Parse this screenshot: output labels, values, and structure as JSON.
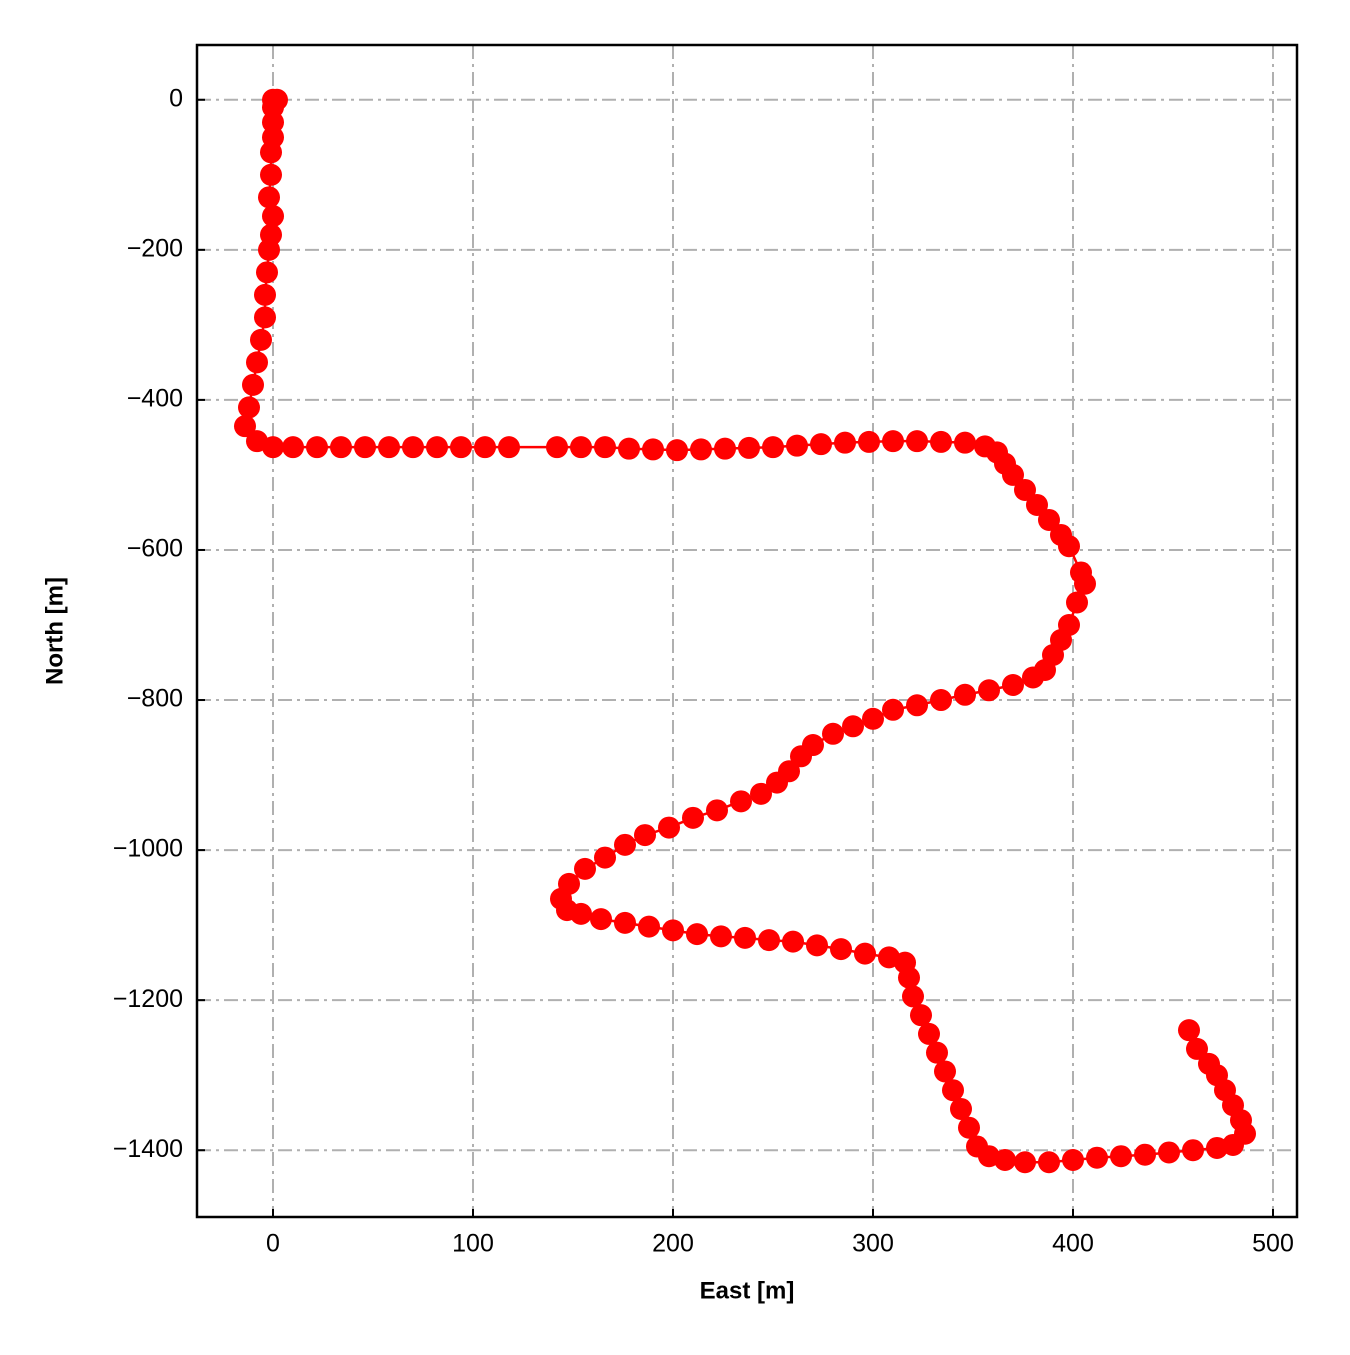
{
  "chart_data": {
    "type": "line",
    "xlabel": "East [m]",
    "ylabel": "North [m]",
    "color": "#ff0000",
    "marker": true,
    "grid": true,
    "x": [
      0,
      2,
      0,
      0,
      0,
      -1,
      -1,
      -2,
      0,
      -1,
      -2,
      -3,
      -4,
      -4,
      -6,
      -8,
      -10,
      -12,
      -14,
      -8,
      0,
      10,
      22,
      34,
      46,
      58,
      70,
      82,
      94,
      106,
      118,
      142,
      154,
      166,
      178,
      190,
      202,
      214,
      226,
      238,
      250,
      262,
      274,
      286,
      298,
      310,
      322,
      334,
      346,
      356,
      362,
      366,
      370,
      376,
      382,
      388,
      394,
      398,
      404,
      406,
      402,
      398,
      394,
      390,
      386,
      380,
      370,
      358,
      346,
      334,
      322,
      310,
      300,
      290,
      280,
      270,
      264,
      258,
      252,
      244,
      234,
      222,
      210,
      198,
      186,
      176,
      166,
      156,
      148,
      144,
      147,
      154,
      164,
      176,
      188,
      200,
      212,
      224,
      236,
      248,
      260,
      272,
      284,
      296,
      308,
      316,
      318,
      320,
      324,
      328,
      332,
      336,
      340,
      344,
      348,
      352,
      358,
      366,
      376,
      388,
      400,
      412,
      424,
      436,
      448,
      460,
      472,
      480,
      486,
      484,
      480,
      476,
      472,
      468,
      462,
      458
    ],
    "values": [
      0,
      0,
      -10,
      -30,
      -50,
      -70,
      -100,
      -130,
      -155,
      -180,
      -200,
      -230,
      -260,
      -290,
      -320,
      -350,
      -380,
      -410,
      -435,
      -455,
      -463,
      -463,
      -463,
      -463,
      -463,
      -463,
      -463,
      -463,
      -463,
      -463,
      -463,
      -463,
      -463,
      -463,
      -465,
      -466,
      -467,
      -466,
      -465,
      -464,
      -463,
      -461,
      -459,
      -457,
      -456,
      -455,
      -455,
      -456,
      -457,
      -462,
      -470,
      -485,
      -500,
      -520,
      -540,
      -560,
      -580,
      -595,
      -630,
      -645,
      -670,
      -700,
      -720,
      -740,
      -760,
      -770,
      -780,
      -787,
      -793,
      -800,
      -807,
      -813,
      -825,
      -835,
      -845,
      -860,
      -875,
      -895,
      -910,
      -925,
      -935,
      -947,
      -957,
      -970,
      -980,
      -993,
      -1010,
      -1025,
      -1045,
      -1065,
      -1080,
      -1085,
      -1092,
      -1097,
      -1102,
      -1107,
      -1112,
      -1115,
      -1117,
      -1120,
      -1122,
      -1127,
      -1132,
      -1138,
      -1143,
      -1150,
      -1170,
      -1195,
      -1220,
      -1245,
      -1270,
      -1295,
      -1320,
      -1345,
      -1370,
      -1395,
      -1408,
      -1413,
      -1416,
      -1416,
      -1413,
      -1410,
      -1408,
      -1406,
      -1403,
      -1400,
      -1397,
      -1393,
      -1378,
      -1360,
      -1340,
      -1320,
      -1300,
      -1285,
      -1265,
      -1240
    ],
    "xlim": [
      -38,
      512
    ],
    "ylim": [
      -1489,
      73
    ],
    "xticks": [
      0,
      100,
      200,
      300,
      400,
      500
    ],
    "yticks": [
      {
        "value": -1400,
        "label": "−1400"
      },
      {
        "value": -1200,
        "label": "−1200"
      },
      {
        "value": -1000,
        "label": "−1000"
      },
      {
        "value": -800,
        "label": "−800"
      },
      {
        "value": -600,
        "label": "−600"
      },
      {
        "value": -400,
        "label": "−400"
      },
      {
        "value": -200,
        "label": "−200"
      },
      0
    ]
  }
}
